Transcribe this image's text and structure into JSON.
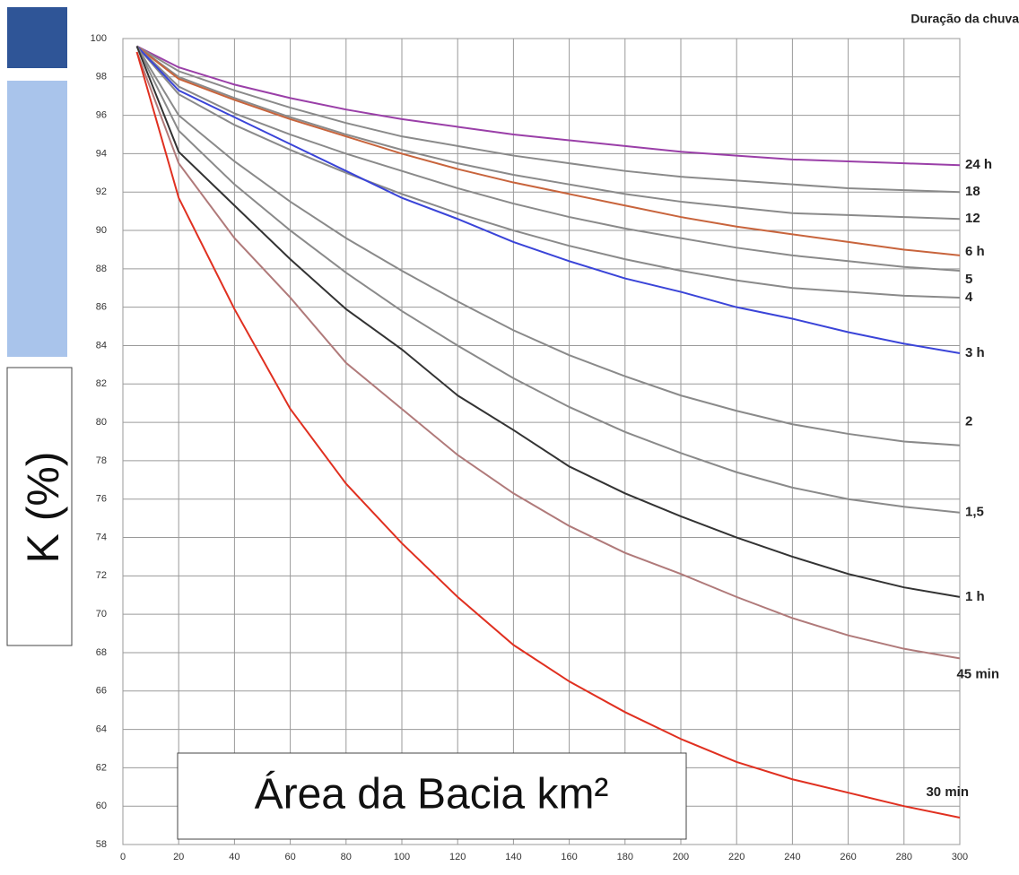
{
  "chart_data": {
    "type": "line",
    "legend_title": "Duração da chuva",
    "ylabel": "K (%)",
    "xlabel": "Área da Bacia km²",
    "x": [
      5,
      20,
      40,
      60,
      80,
      100,
      120,
      140,
      160,
      180,
      200,
      220,
      240,
      260,
      280,
      300
    ],
    "xlim": [
      0,
      300
    ],
    "xticks": [
      0,
      20,
      40,
      60,
      80,
      100,
      120,
      140,
      160,
      180,
      200,
      220,
      240,
      260,
      280,
      300
    ],
    "ylim": [
      58,
      100
    ],
    "yticks": [
      58,
      60,
      62,
      64,
      66,
      68,
      70,
      72,
      74,
      76,
      78,
      80,
      82,
      84,
      86,
      88,
      90,
      92,
      94,
      96,
      98,
      100
    ],
    "grid": true,
    "series": [
      {
        "name": "24 h",
        "color": "#9a3fa8",
        "values": [
          99.6,
          98.5,
          97.6,
          96.9,
          96.3,
          95.8,
          95.4,
          95.0,
          94.7,
          94.4,
          94.1,
          93.9,
          93.7,
          93.6,
          93.5,
          93.4
        ]
      },
      {
        "name": "18",
        "color": "#8a8a8a",
        "values": [
          99.6,
          98.3,
          97.3,
          96.4,
          95.6,
          94.9,
          94.4,
          93.9,
          93.5,
          93.1,
          92.8,
          92.6,
          92.4,
          92.2,
          92.1,
          92.0
        ]
      },
      {
        "name": "12",
        "color": "#8a8a8a",
        "values": [
          99.6,
          98.0,
          96.9,
          95.9,
          95.0,
          94.2,
          93.5,
          92.9,
          92.4,
          91.9,
          91.5,
          91.2,
          90.9,
          90.8,
          90.7,
          90.6
        ]
      },
      {
        "name": "6 h",
        "color": "#c8643c",
        "values": [
          99.6,
          97.9,
          96.8,
          95.8,
          94.9,
          94.0,
          93.2,
          92.5,
          91.9,
          91.3,
          90.7,
          90.2,
          89.8,
          89.4,
          89.0,
          88.7
        ]
      },
      {
        "name": "5",
        "color": "#8a8a8a",
        "values": [
          99.6,
          97.5,
          96.1,
          95.0,
          94.0,
          93.1,
          92.2,
          91.4,
          90.7,
          90.1,
          89.6,
          89.1,
          88.7,
          88.4,
          88.1,
          87.9
        ]
      },
      {
        "name": "4",
        "color": "#8a8a8a",
        "values": [
          99.6,
          97.1,
          95.5,
          94.2,
          93.0,
          91.9,
          90.9,
          90.0,
          89.2,
          88.5,
          87.9,
          87.4,
          87.0,
          86.8,
          86.6,
          86.5
        ]
      },
      {
        "name": "3 h",
        "color": "#3a44d8",
        "values": [
          99.6,
          97.3,
          95.9,
          94.5,
          93.1,
          91.7,
          90.6,
          89.4,
          88.4,
          87.5,
          86.8,
          86.0,
          85.4,
          84.7,
          84.1,
          83.6
        ]
      },
      {
        "name": "2",
        "color": "#8a8a8a",
        "values": [
          99.6,
          96.0,
          93.6,
          91.5,
          89.6,
          87.9,
          86.3,
          84.8,
          83.5,
          82.4,
          81.4,
          80.6,
          79.9,
          79.4,
          79.0,
          78.8
        ]
      },
      {
        "name": "1,5",
        "color": "#8a8a8a",
        "values": [
          99.6,
          95.2,
          92.4,
          90.0,
          87.8,
          85.8,
          84.0,
          82.3,
          80.8,
          79.5,
          78.4,
          77.4,
          76.6,
          76.0,
          75.6,
          75.3
        ]
      },
      {
        "name": "1 h",
        "color": "#333333",
        "values": [
          99.6,
          94.1,
          91.3,
          88.5,
          85.9,
          83.8,
          81.4,
          79.6,
          77.7,
          76.3,
          75.1,
          74.0,
          73.0,
          72.1,
          71.4,
          70.9
        ]
      },
      {
        "name": "45 min",
        "color": "#b07a7a",
        "values": [
          99.3,
          93.5,
          89.6,
          86.5,
          83.1,
          80.7,
          78.3,
          76.3,
          74.6,
          73.2,
          72.1,
          70.9,
          69.8,
          68.9,
          68.2,
          67.7
        ]
      },
      {
        "name": "30 min",
        "color": "#e03020",
        "values": [
          99.3,
          91.7,
          85.9,
          80.7,
          76.8,
          73.7,
          70.9,
          68.4,
          66.5,
          64.9,
          63.5,
          62.3,
          61.4,
          60.7,
          60.0,
          59.4
        ]
      }
    ]
  }
}
